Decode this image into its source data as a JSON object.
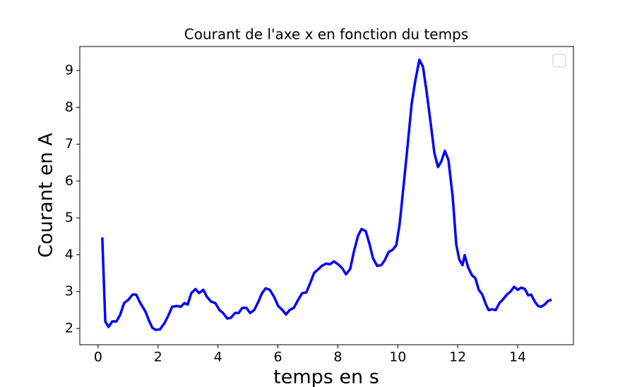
{
  "chart_data": {
    "type": "line",
    "title": "Courant de l'axe x en fonction du temps",
    "xlabel": "temps en s",
    "ylabel": "Courant en A",
    "color": "#0000ff",
    "x": [
      0.14,
      0.24,
      0.35,
      0.47,
      0.61,
      0.73,
      0.87,
      1.01,
      1.15,
      1.27,
      1.41,
      1.58,
      1.7,
      1.81,
      1.93,
      2.07,
      2.22,
      2.36,
      2.47,
      2.64,
      2.76,
      2.88,
      2.99,
      3.11,
      3.25,
      3.37,
      3.51,
      3.63,
      3.77,
      3.91,
      4.05,
      4.17,
      4.31,
      4.43,
      4.57,
      4.69,
      4.81,
      4.95,
      5.07,
      5.21,
      5.35,
      5.47,
      5.59,
      5.73,
      5.87,
      6.01,
      6.15,
      6.27,
      6.39,
      6.53,
      6.67,
      6.81,
      6.95,
      7.09,
      7.21,
      7.35,
      7.47,
      7.61,
      7.73,
      7.87,
      8.01,
      8.15,
      8.27,
      8.41,
      8.53,
      8.67,
      8.79,
      8.93,
      9.05,
      9.17,
      9.31,
      9.45,
      9.57,
      9.69,
      9.83,
      9.95,
      10.06,
      10.18,
      10.32,
      10.46,
      10.58,
      10.72,
      10.84,
      10.96,
      11.1,
      11.22,
      11.34,
      11.45,
      11.57,
      11.69,
      11.83,
      11.95,
      12.05,
      12.16,
      12.23,
      12.35,
      12.47,
      12.59,
      12.7,
      12.82,
      12.94,
      13.03,
      13.15,
      13.27,
      13.39,
      13.5,
      13.64,
      13.76,
      13.88,
      14.0,
      14.12,
      14.24,
      14.35,
      14.45,
      14.57,
      14.68,
      14.78,
      14.9,
      15.02,
      15.13
    ],
    "values": [
      4.47,
      2.19,
      2.04,
      2.19,
      2.19,
      2.36,
      2.69,
      2.78,
      2.92,
      2.92,
      2.69,
      2.46,
      2.21,
      2.02,
      1.96,
      1.98,
      2.15,
      2.38,
      2.59,
      2.61,
      2.59,
      2.69,
      2.65,
      2.96,
      3.07,
      2.96,
      3.05,
      2.86,
      2.73,
      2.69,
      2.5,
      2.42,
      2.27,
      2.29,
      2.42,
      2.42,
      2.56,
      2.56,
      2.42,
      2.5,
      2.73,
      2.96,
      3.09,
      3.05,
      2.86,
      2.61,
      2.5,
      2.38,
      2.5,
      2.56,
      2.77,
      2.96,
      2.98,
      3.26,
      3.51,
      3.61,
      3.7,
      3.76,
      3.74,
      3.82,
      3.74,
      3.63,
      3.47,
      3.61,
      4.07,
      4.51,
      4.7,
      4.64,
      4.31,
      3.91,
      3.7,
      3.72,
      3.86,
      4.07,
      4.14,
      4.26,
      4.83,
      5.77,
      6.9,
      8.08,
      8.71,
      9.29,
      9.1,
      8.43,
      7.55,
      6.76,
      6.38,
      6.53,
      6.82,
      6.57,
      5.58,
      4.28,
      3.87,
      3.72,
      3.99,
      3.65,
      3.45,
      3.36,
      3.05,
      2.92,
      2.65,
      2.5,
      2.52,
      2.5,
      2.69,
      2.78,
      2.92,
      3.0,
      3.13,
      3.05,
      3.11,
      3.07,
      2.9,
      2.92,
      2.73,
      2.61,
      2.59,
      2.65,
      2.75,
      2.78
    ],
    "xlim": [
      -0.61,
      15.86
    ],
    "xticks": [
      0,
      2,
      4,
      6,
      8,
      10,
      12,
      14
    ],
    "ylim": [
      1.56,
      9.65
    ],
    "yticks": [
      2,
      3,
      4,
      5,
      6,
      7,
      8,
      9
    ]
  }
}
